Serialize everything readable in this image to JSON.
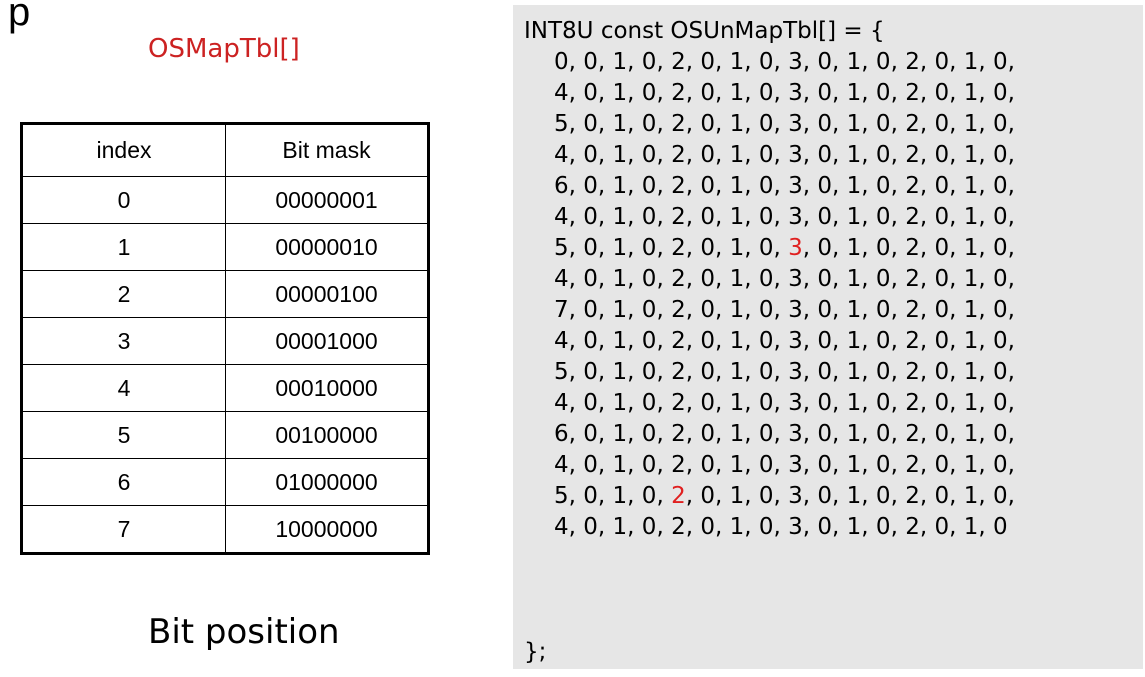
{
  "corner_mark": "p",
  "map_title": "OSMapTbl[]",
  "bit_table": {
    "headers": [
      "index",
      "Bit mask"
    ],
    "rows": [
      [
        "0",
        "00000001"
      ],
      [
        "1",
        "00000010"
      ],
      [
        "2",
        "00000100"
      ],
      [
        "3",
        "00001000"
      ],
      [
        "4",
        "00010000"
      ],
      [
        "5",
        "00100000"
      ],
      [
        "6",
        "01000000"
      ],
      [
        "7",
        "10000000"
      ]
    ]
  },
  "bit_position_label": "Bit position",
  "code": {
    "declaration": "INT8U const OSUnMapTbl[] = {",
    "closing": "};",
    "highlight_color": "#e02020",
    "rows": [
      [
        "0",
        "0",
        "1",
        "0",
        "2",
        "0",
        "1",
        "0",
        "3",
        "0",
        "1",
        "0",
        "2",
        "0",
        "1",
        "0"
      ],
      [
        "4",
        "0",
        "1",
        "0",
        "2",
        "0",
        "1",
        "0",
        "3",
        "0",
        "1",
        "0",
        "2",
        "0",
        "1",
        "0"
      ],
      [
        "5",
        "0",
        "1",
        "0",
        "2",
        "0",
        "1",
        "0",
        "3",
        "0",
        "1",
        "0",
        "2",
        "0",
        "1",
        "0"
      ],
      [
        "4",
        "0",
        "1",
        "0",
        "2",
        "0",
        "1",
        "0",
        "3",
        "0",
        "1",
        "0",
        "2",
        "0",
        "1",
        "0"
      ],
      [
        "6",
        "0",
        "1",
        "0",
        "2",
        "0",
        "1",
        "0",
        "3",
        "0",
        "1",
        "0",
        "2",
        "0",
        "1",
        "0"
      ],
      [
        "4",
        "0",
        "1",
        "0",
        "2",
        "0",
        "1",
        "0",
        "3",
        "0",
        "1",
        "0",
        "2",
        "0",
        "1",
        "0"
      ],
      [
        "5",
        "0",
        "1",
        "0",
        "2",
        "0",
        "1",
        "0",
        "3",
        "0",
        "1",
        "0",
        "2",
        "0",
        "1",
        "0"
      ],
      [
        "4",
        "0",
        "1",
        "0",
        "2",
        "0",
        "1",
        "0",
        "3",
        "0",
        "1",
        "0",
        "2",
        "0",
        "1",
        "0"
      ],
      [
        "7",
        "0",
        "1",
        "0",
        "2",
        "0",
        "1",
        "0",
        "3",
        "0",
        "1",
        "0",
        "2",
        "0",
        "1",
        "0"
      ],
      [
        "4",
        "0",
        "1",
        "0",
        "2",
        "0",
        "1",
        "0",
        "3",
        "0",
        "1",
        "0",
        "2",
        "0",
        "1",
        "0"
      ],
      [
        "5",
        "0",
        "1",
        "0",
        "2",
        "0",
        "1",
        "0",
        "3",
        "0",
        "1",
        "0",
        "2",
        "0",
        "1",
        "0"
      ],
      [
        "4",
        "0",
        "1",
        "0",
        "2",
        "0",
        "1",
        "0",
        "3",
        "0",
        "1",
        "0",
        "2",
        "0",
        "1",
        "0"
      ],
      [
        "6",
        "0",
        "1",
        "0",
        "2",
        "0",
        "1",
        "0",
        "3",
        "0",
        "1",
        "0",
        "2",
        "0",
        "1",
        "0"
      ],
      [
        "4",
        "0",
        "1",
        "0",
        "2",
        "0",
        "1",
        "0",
        "3",
        "0",
        "1",
        "0",
        "2",
        "0",
        "1",
        "0"
      ],
      [
        "5",
        "0",
        "1",
        "0",
        "2",
        "0",
        "1",
        "0",
        "3",
        "0",
        "1",
        "0",
        "2",
        "0",
        "1",
        "0"
      ],
      [
        "4",
        "0",
        "1",
        "0",
        "2",
        "0",
        "1",
        "0",
        "3",
        "0",
        "1",
        "0",
        "2",
        "0",
        "1",
        "0"
      ]
    ],
    "highlights": [
      {
        "row": 6,
        "col": 8
      },
      {
        "row": 14,
        "col": 4
      }
    ]
  }
}
